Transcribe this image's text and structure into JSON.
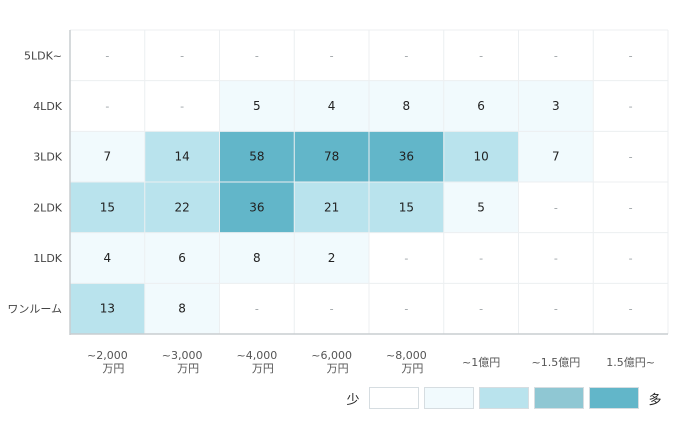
{
  "chart_data": {
    "type": "heatmap",
    "rows": [
      "5LDK~",
      "4LDK",
      "3LDK",
      "2LDK",
      "1LDK",
      "ワンルーム"
    ],
    "columns": [
      [
        "~2,000",
        "万円"
      ],
      [
        "~3,000",
        "万円"
      ],
      [
        "~4,000",
        "万円"
      ],
      [
        "~6,000",
        "万円"
      ],
      [
        "~8,000",
        "万円"
      ],
      [
        "~1億円"
      ],
      [
        "~1.5億円"
      ],
      [
        "1.5億円~"
      ]
    ],
    "values": [
      [
        null,
        null,
        null,
        null,
        null,
        null,
        null,
        null
      ],
      [
        null,
        null,
        5,
        4,
        8,
        6,
        3,
        null
      ],
      [
        7,
        14,
        58,
        78,
        36,
        10,
        7,
        null
      ],
      [
        15,
        22,
        36,
        21,
        15,
        5,
        null,
        null
      ],
      [
        4,
        6,
        8,
        2,
        null,
        null,
        null,
        null
      ],
      [
        13,
        8,
        null,
        null,
        null,
        null,
        null,
        null
      ]
    ],
    "empty_symbol": "-",
    "scale_colors": [
      "#ffffff",
      "#f1fafd",
      "#b9e3ed",
      "#8fc7d3",
      "#62b6c9"
    ],
    "legend": {
      "low_label": "少",
      "high_label": "多"
    },
    "grid": true
  }
}
